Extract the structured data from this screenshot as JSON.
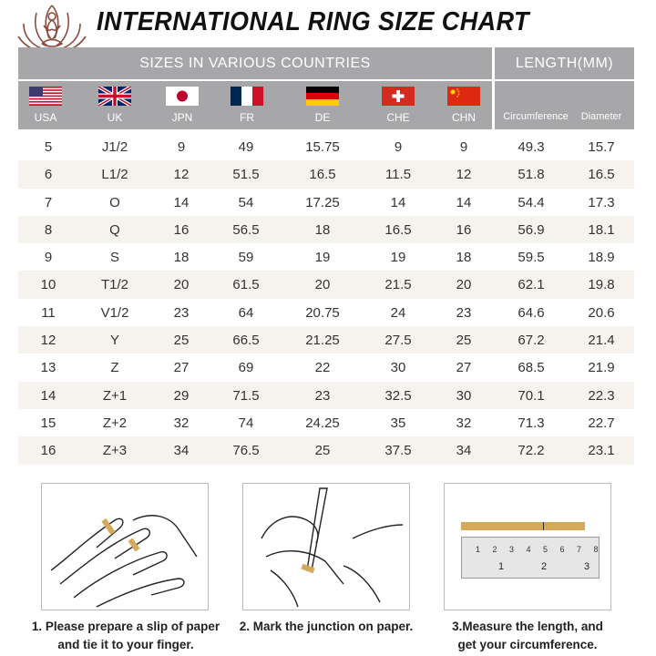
{
  "title": "INTERNATIONAL RING SIZE CHART",
  "header": {
    "sizes_label": "SIZES IN VARIOUS COUNTRIES",
    "length_label": "LENGTH(MM)",
    "countries": [
      {
        "code": "USA",
        "flag": "us-flag"
      },
      {
        "code": "UK",
        "flag": "uk-flag"
      },
      {
        "code": "JPN",
        "flag": "japan-flag"
      },
      {
        "code": "FR",
        "flag": "france-flag"
      },
      {
        "code": "DE",
        "flag": "germany-flag"
      },
      {
        "code": "CHE",
        "flag": "switzerland-flag"
      },
      {
        "code": "CHN",
        "flag": "china-flag"
      }
    ],
    "length_cols": [
      "Circumference",
      "Diameter"
    ]
  },
  "rows": [
    [
      "5",
      "J1/2",
      "9",
      "49",
      "15.75",
      "9",
      "9",
      "49.3",
      "15.7"
    ],
    [
      "6",
      "L1/2",
      "12",
      "51.5",
      "16.5",
      "11.5",
      "12",
      "51.8",
      "16.5"
    ],
    [
      "7",
      "O",
      "14",
      "54",
      "17.25",
      "14",
      "14",
      "54.4",
      "17.3"
    ],
    [
      "8",
      "Q",
      "16",
      "56.5",
      "18",
      "16.5",
      "16",
      "56.9",
      "18.1"
    ],
    [
      "9",
      "S",
      "18",
      "59",
      "19",
      "19",
      "18",
      "59.5",
      "18.9"
    ],
    [
      "10",
      "T1/2",
      "20",
      "61.5",
      "20",
      "21.5",
      "20",
      "62.1",
      "19.8"
    ],
    [
      "11",
      "V1/2",
      "23",
      "64",
      "20.75",
      "24",
      "23",
      "64.6",
      "20.6"
    ],
    [
      "12",
      "Y",
      "25",
      "66.5",
      "21.25",
      "27.5",
      "25",
      "67.2",
      "21.4"
    ],
    [
      "13",
      "Z",
      "27",
      "69",
      "22",
      "30",
      "27",
      "68.5",
      "21.9"
    ],
    [
      "14",
      "Z+1",
      "29",
      "71.5",
      "23",
      "32.5",
      "30",
      "70.1",
      "22.3"
    ],
    [
      "15",
      "Z+2",
      "32",
      "74",
      "24.25",
      "35",
      "32",
      "71.3",
      "22.7"
    ],
    [
      "16",
      "Z+3",
      "34",
      "76.5",
      "25",
      "37.5",
      "34",
      "72.2",
      "23.1"
    ]
  ],
  "steps": [
    {
      "line1": "1. Please prepare a slip of paper",
      "line2": "and tie it to your finger."
    },
    {
      "line1": "2. Mark the junction on paper.",
      "line2": ""
    },
    {
      "line1": "3.Measure the length, and",
      "line2": "get your circumference."
    }
  ],
  "ruler": {
    "cm_ticks": [
      "1",
      "2",
      "3",
      "4",
      "5",
      "6",
      "7",
      "8"
    ],
    "inch_ticks": [
      "1",
      "2",
      "3"
    ]
  },
  "colors": {
    "header_bg": "#a7a7a9",
    "row_alt": "#f6f3ee",
    "paper_strip": "#d4aa5a",
    "logo": "#8a4a3a"
  }
}
